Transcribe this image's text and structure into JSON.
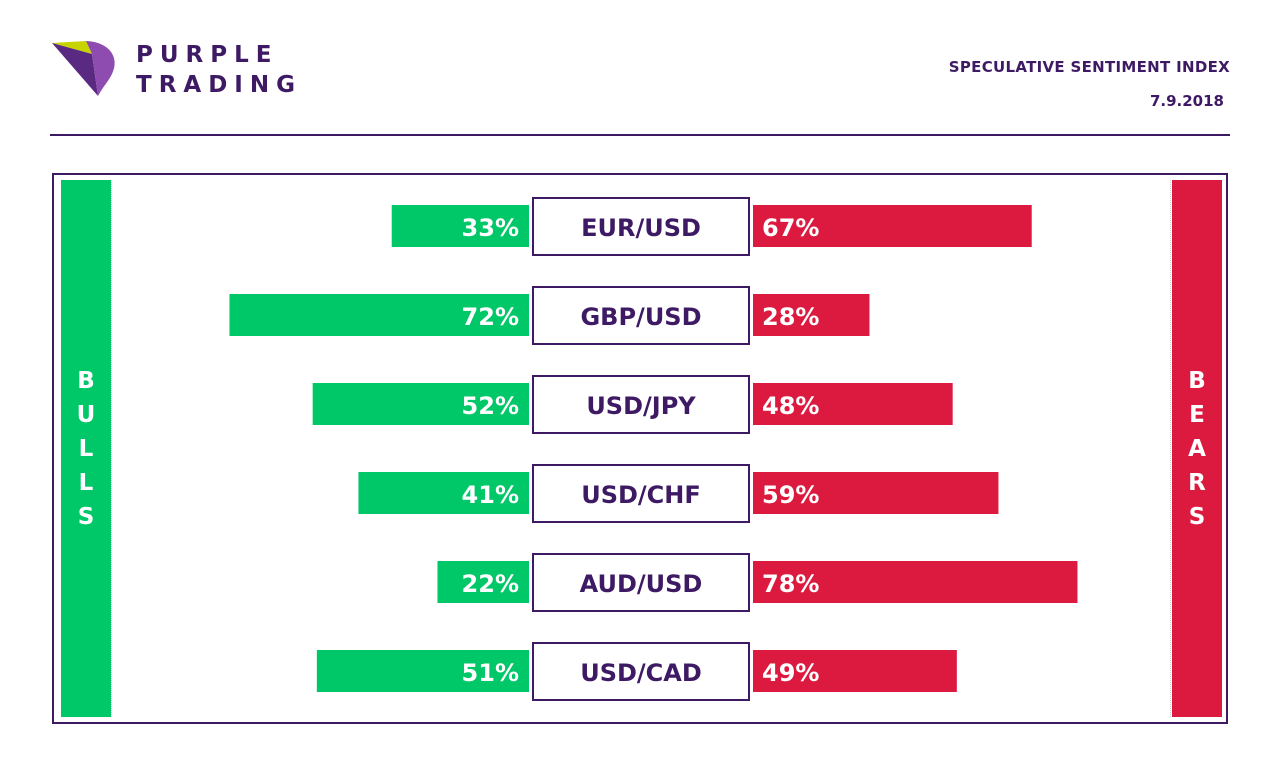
{
  "brand": {
    "name_line1": "PURPLE",
    "name_line2": "TRADING",
    "colors": {
      "purple": "#3d1a63",
      "logo_purple": "#7a3e9d",
      "logo_lime": "#c8d400"
    }
  },
  "header": {
    "title": "SPECULATIVE SENTIMENT INDEX",
    "date": "7.9.2018"
  },
  "sides": {
    "left_label": "BULLS",
    "right_label": "BEARS",
    "left_color": "#00c767",
    "right_color": "#dc1a3f"
  },
  "chart_data": {
    "type": "bar",
    "categories": [
      "EUR/USD",
      "GBP/USD",
      "USD/JPY",
      "USD/CHF",
      "AUD/USD",
      "USD/CAD"
    ],
    "series": [
      {
        "name": "BULLS",
        "values": [
          33,
          72,
          52,
          41,
          22,
          51
        ],
        "color": "#00c767"
      },
      {
        "name": "BEARS",
        "values": [
          67,
          28,
          48,
          59,
          78,
          49
        ],
        "color": "#dc1a3f"
      }
    ],
    "labels_bulls": [
      "33%",
      "72%",
      "52%",
      "41%",
      "22%",
      "51%"
    ],
    "labels_bears": [
      "67%",
      "28%",
      "48%",
      "59%",
      "78%",
      "49%"
    ],
    "title": "",
    "xlabel": "",
    "ylabel": "",
    "xlim": [
      0,
      100
    ],
    "grid": false
  }
}
